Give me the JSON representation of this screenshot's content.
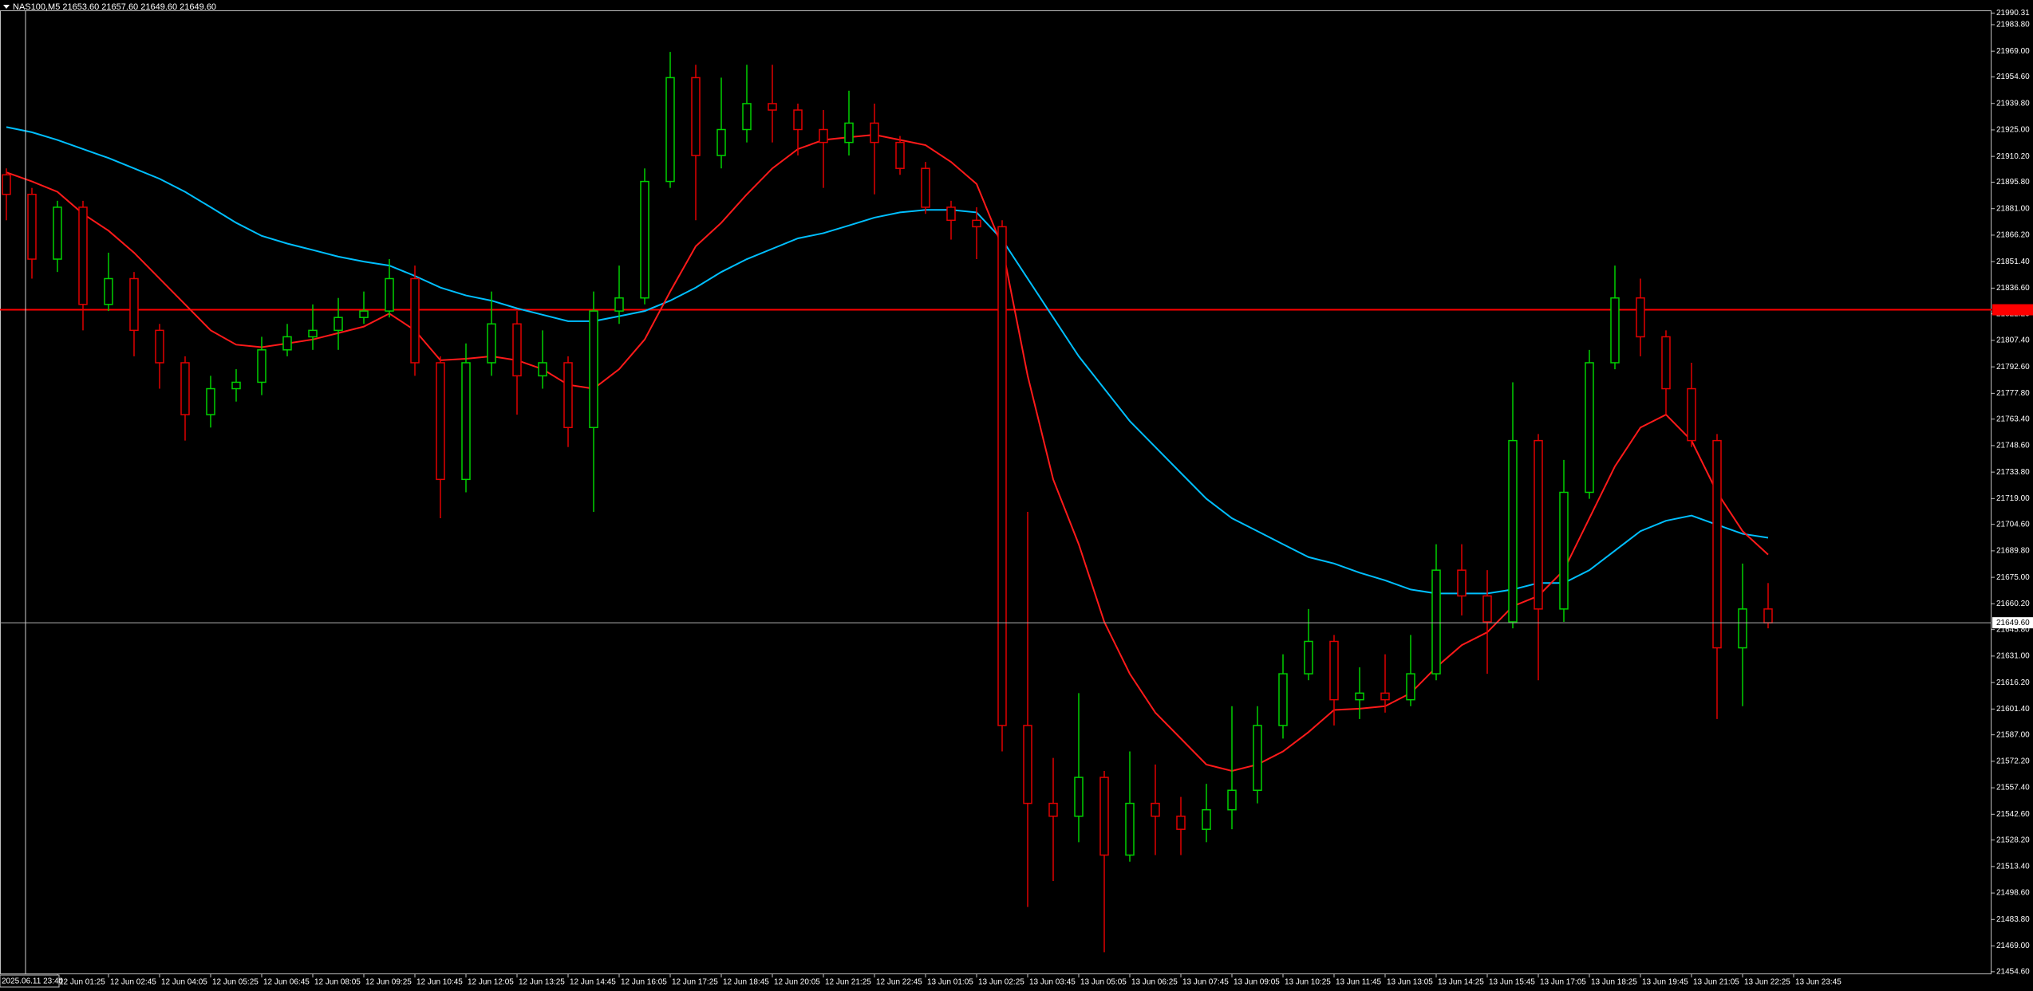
{
  "chart_data": {
    "type": "candlestick",
    "title": "NAS100,M5  21653.60 21657.60 21649.60 21649.60",
    "cursor_label": "2025.06.11 23:40",
    "up_color": "#00d000",
    "down_color": "#e00000",
    "open": [
      21899.9,
      21889.0,
      21852.8,
      21881.8,
      21827.5,
      21841.9,
      21813.0,
      21794.9,
      21765.9,
      21780.4,
      21784.0,
      21802.1,
      21809.4,
      21813.0,
      21820.2,
      21823.8,
      21841.9,
      21794.9,
      21729.7,
      21794.9,
      21816.6,
      21787.6,
      21794.9,
      21758.7,
      21823.8,
      21831.1,
      21896.2,
      21954.2,
      21910.7,
      21925.2,
      21939.7,
      21936.1,
      21925.2,
      21918.0,
      21928.8,
      21918.0,
      21903.5,
      21881.8,
      21874.5,
      21870.9,
      21592.2,
      21548.7,
      21541.5,
      21563.2,
      21519.8,
      21548.7,
      21541.5,
      21534.2,
      21545.1,
      21556.0,
      21592.2,
      21621.1,
      21639.2,
      21606.6,
      21610.3,
      21606.6,
      21621.1,
      21679.0,
      21664.6,
      21650.1,
      21751.4,
      21657.3,
      21722.5,
      21794.9,
      21831.1,
      21809.4,
      21780.4,
      21751.4,
      21635.6,
      21657.3
    ],
    "high": [
      21903.5,
      21892.6,
      21885.4,
      21885.4,
      21856.4,
      21845.6,
      21816.6,
      21798.5,
      21787.6,
      21791.3,
      21809.4,
      21816.6,
      21827.5,
      21831.1,
      21834.7,
      21852.8,
      21849.2,
      21798.5,
      21805.7,
      21834.7,
      21823.8,
      21813.0,
      21798.5,
      21834.7,
      21849.2,
      21903.5,
      21968.6,
      21961.4,
      21954.2,
      21961.4,
      21961.4,
      21939.7,
      21936.1,
      21946.9,
      21939.7,
      21921.6,
      21907.1,
      21885.4,
      21881.8,
      21874.5,
      21711.6,
      21574.1,
      21610.3,
      21566.8,
      21577.7,
      21570.4,
      21552.3,
      21559.6,
      21603.0,
      21603.0,
      21632.0,
      21657.3,
      21642.8,
      21624.7,
      21632.0,
      21642.8,
      21693.5,
      21693.5,
      21679.0,
      21784.0,
      21755.1,
      21740.6,
      21802.1,
      21849.2,
      21841.9,
      21813.0,
      21794.9,
      21755.1,
      21682.7,
      21671.8
    ],
    "low": [
      21874.5,
      21841.9,
      21845.6,
      21813.0,
      21823.8,
      21798.5,
      21780.4,
      21751.4,
      21758.7,
      21773.2,
      21776.8,
      21798.5,
      21802.1,
      21802.1,
      21816.6,
      21820.2,
      21787.6,
      21708.0,
      21722.5,
      21787.6,
      21765.9,
      21780.4,
      21747.8,
      21711.6,
      21816.6,
      21827.5,
      21892.6,
      21874.5,
      21903.5,
      21918.0,
      21918.0,
      21910.7,
      21892.6,
      21910.7,
      21889.0,
      21899.9,
      21878.1,
      21863.7,
      21852.8,
      21577.7,
      21490.8,
      21505.3,
      21527.0,
      21465.5,
      21516.1,
      21519.8,
      21519.8,
      21527.0,
      21534.2,
      21548.7,
      21584.9,
      21617.5,
      21592.2,
      21595.8,
      21599.4,
      21603.0,
      21617.5,
      21653.7,
      21621.1,
      21646.5,
      21617.5,
      21650.1,
      21718.9,
      21791.3,
      21798.5,
      21765.9,
      21747.8,
      21595.8,
      21603.0,
      21646.5
    ],
    "close": [
      21889.0,
      21852.8,
      21881.8,
      21827.5,
      21841.9,
      21813.0,
      21794.9,
      21765.9,
      21780.4,
      21784.0,
      21802.1,
      21809.4,
      21813.0,
      21820.2,
      21823.8,
      21841.9,
      21794.9,
      21729.7,
      21794.9,
      21816.6,
      21787.6,
      21794.9,
      21758.7,
      21823.8,
      21831.1,
      21896.2,
      21954.2,
      21910.7,
      21925.2,
      21939.7,
      21936.1,
      21925.2,
      21918.0,
      21928.8,
      21918.0,
      21903.5,
      21881.8,
      21874.5,
      21870.9,
      21592.2,
      21548.7,
      21541.5,
      21563.2,
      21519.8,
      21548.7,
      21541.5,
      21534.2,
      21545.1,
      21556.0,
      21592.2,
      21621.1,
      21639.2,
      21606.6,
      21610.3,
      21606.6,
      21621.1,
      21679.0,
      21664.6,
      21650.1,
      21751.4,
      21657.3,
      21722.5,
      21794.9,
      21831.1,
      21809.4,
      21780.4,
      21751.4,
      21635.6,
      21657.3,
      21649.6
    ],
    "overlays": [
      {
        "color": "#00bfff",
        "values": [
          21926.6,
          21923.7,
          21919.4,
          21914.3,
          21909.3,
          21903.5,
          21897.7,
          21890.4,
          21881.8,
          21873.1,
          21865.8,
          21861.5,
          21857.9,
          21854.2,
          21851.4,
          21849.2,
          21843.4,
          21836.9,
          21832.5,
          21829.6,
          21825.3,
          21821.7,
          21818.1,
          21818.1,
          21820.9,
          21823.8,
          21829.6,
          21836.9,
          21845.6,
          21852.8,
          21858.6,
          21864.4,
          21867.3,
          21871.6,
          21876.0,
          21878.9,
          21880.3,
          21880.3,
          21878.9,
          21863.7,
          21841.9,
          21820.2,
          21798.5,
          21780.4,
          21762.3,
          21747.8,
          21733.3,
          21718.9,
          21708.0,
          21700.8,
          21693.5,
          21686.3,
          21682.7,
          21677.6,
          21673.3,
          21668.2,
          21666.0,
          21666.0,
          21666.0,
          21668.2,
          21671.8,
          21671.8,
          21679.0,
          21689.9,
          21700.8,
          21706.6,
          21709.5,
          21704.4,
          21699.3,
          21697.1
        ]
      },
      {
        "color": "#ff1a1a",
        "values": [
          21901.3,
          21896.2,
          21890.4,
          21878.1,
          21868.7,
          21856.4,
          21841.9,
          21827.5,
          21813.0,
          21805.0,
          21803.6,
          21805.7,
          21807.9,
          21811.5,
          21815.1,
          21822.4,
          21813.0,
          21796.3,
          21797.1,
          21798.5,
          21796.3,
          21791.3,
          21782.6,
          21780.4,
          21791.3,
          21807.9,
          21834.7,
          21860.0,
          21873.1,
          21889.0,
          21903.5,
          21914.3,
          21919.4,
          21920.9,
          21922.3,
          21919.4,
          21916.5,
          21907.1,
          21894.8,
          21860.0,
          21787.6,
          21729.7,
          21693.5,
          21650.1,
          21621.1,
          21599.4,
          21584.9,
          21570.4,
          21566.8,
          21570.4,
          21577.7,
          21588.5,
          21600.9,
          21601.6,
          21603.0,
          21610.3,
          21624.7,
          21637.1,
          21644.3,
          21658.8,
          21664.6,
          21679.0,
          21708.0,
          21737.0,
          21758.7,
          21765.9,
          21751.4,
          21722.5,
          21700.8,
          21687.7
        ]
      }
    ],
    "levels": [
      {
        "value": 21824.5,
        "color": "#ff0000"
      }
    ],
    "bid_line": {
      "value": 21649.6,
      "label": "21649.60",
      "color": "#b0b0b0"
    },
    "ylim": [
      21453.2,
      21991.8
    ],
    "yticks": [
      {
        "value": 21990.31,
        "label": "21990.31"
      },
      {
        "value": 21983.8,
        "label": "21983.80"
      },
      {
        "value": 21969,
        "label": "21969.00"
      },
      {
        "value": 21954.6,
        "label": "21954.60"
      },
      {
        "value": 21939.8,
        "label": "21939.80"
      },
      {
        "value": 21925,
        "label": "21925.00"
      },
      {
        "value": 21910.2,
        "label": "21910.20"
      },
      {
        "value": 21895.8,
        "label": "21895.80"
      },
      {
        "value": 21881,
        "label": "21881.00"
      },
      {
        "value": 21866.2,
        "label": "21866.20"
      },
      {
        "value": 21851.4,
        "label": "21851.40"
      },
      {
        "value": 21836.6,
        "label": "21836.60"
      },
      {
        "value": 21822.2,
        "label": "21822.20"
      },
      {
        "value": 21807.4,
        "label": "21807.40"
      },
      {
        "value": 21792.6,
        "label": "21792.60"
      },
      {
        "value": 21777.8,
        "label": "21777.80"
      },
      {
        "value": 21763.4,
        "label": "21763.40"
      },
      {
        "value": 21748.6,
        "label": "21748.60"
      },
      {
        "value": 21733.8,
        "label": "21733.80"
      },
      {
        "value": 21719,
        "label": "21719.00"
      },
      {
        "value": 21704.6,
        "label": "21704.60"
      },
      {
        "value": 21689.8,
        "label": "21689.80"
      },
      {
        "value": 21675,
        "label": "21675.00"
      },
      {
        "value": 21660.2,
        "label": "21660.20"
      },
      {
        "value": 21645.8,
        "label": "21645.80"
      },
      {
        "value": 21631,
        "label": "21631.00"
      },
      {
        "value": 21616.2,
        "label": "21616.20"
      },
      {
        "value": 21601.4,
        "label": "21601.40"
      },
      {
        "value": 21587,
        "label": "21587.00"
      },
      {
        "value": 21572.2,
        "label": "21572.20"
      },
      {
        "value": 21557.4,
        "label": "21557.40"
      },
      {
        "value": 21542.6,
        "label": "21542.60"
      },
      {
        "value": 21528.2,
        "label": "21528.20"
      },
      {
        "value": 21513.4,
        "label": "21513.40"
      },
      {
        "value": 21498.6,
        "label": "21498.60"
      },
      {
        "value": 21483.8,
        "label": "21483.80"
      },
      {
        "value": 21469,
        "label": "21469.00"
      },
      {
        "value": 21454.6,
        "label": "21454.60"
      }
    ],
    "xticks": [
      {
        "value": 2,
        "label": "12 Jun 01:25"
      },
      {
        "value": 4,
        "label": "12 Jun 02:45"
      },
      {
        "value": 6,
        "label": "12 Jun 04:05"
      },
      {
        "value": 8,
        "label": "12 Jun 05:25"
      },
      {
        "value": 10,
        "label": "12 Jun 06:45"
      },
      {
        "value": 12,
        "label": "12 Jun 08:05"
      },
      {
        "value": 14,
        "label": "12 Jun 09:25"
      },
      {
        "value": 16,
        "label": "12 Jun 10:45"
      },
      {
        "value": 18,
        "label": "12 Jun 12:05"
      },
      {
        "value": 20,
        "label": "12 Jun 13:25"
      },
      {
        "value": 22,
        "label": "12 Jun 14:45"
      },
      {
        "value": 24,
        "label": "12 Jun 16:05"
      },
      {
        "value": 26,
        "label": "12 Jun 17:25"
      },
      {
        "value": 28,
        "label": "12 Jun 18:45"
      },
      {
        "value": 30,
        "label": "12 Jun 20:05"
      },
      {
        "value": 32,
        "label": "12 Jun 21:25"
      },
      {
        "value": 34,
        "label": "12 Jun 22:45"
      },
      {
        "value": 36,
        "label": "13 Jun 01:05"
      },
      {
        "value": 38,
        "label": "13 Jun 02:25"
      },
      {
        "value": 40,
        "label": "13 Jun 03:45"
      },
      {
        "value": 42,
        "label": "13 Jun 05:05"
      },
      {
        "value": 44,
        "label": "13 Jun 06:25"
      },
      {
        "value": 46,
        "label": "13 Jun 07:45"
      },
      {
        "value": 48,
        "label": "13 Jun 09:05"
      },
      {
        "value": 50,
        "label": "13 Jun 10:25"
      },
      {
        "value": 52,
        "label": "13 Jun 11:45"
      },
      {
        "value": 54,
        "label": "13 Jun 13:05"
      },
      {
        "value": 56,
        "label": "13 Jun 14:25"
      },
      {
        "value": 58,
        "label": "13 Jun 15:45"
      },
      {
        "value": 60,
        "label": "13 Jun 17:05"
      },
      {
        "value": 62,
        "label": "13 Jun 18:25"
      },
      {
        "value": 64,
        "label": "13 Jun 19:45"
      },
      {
        "value": 66,
        "label": "13 Jun 21:05"
      },
      {
        "value": 68,
        "label": "13 Jun 22:25"
      },
      {
        "value": 70,
        "label": "13 Jun 23:45"
      }
    ]
  }
}
